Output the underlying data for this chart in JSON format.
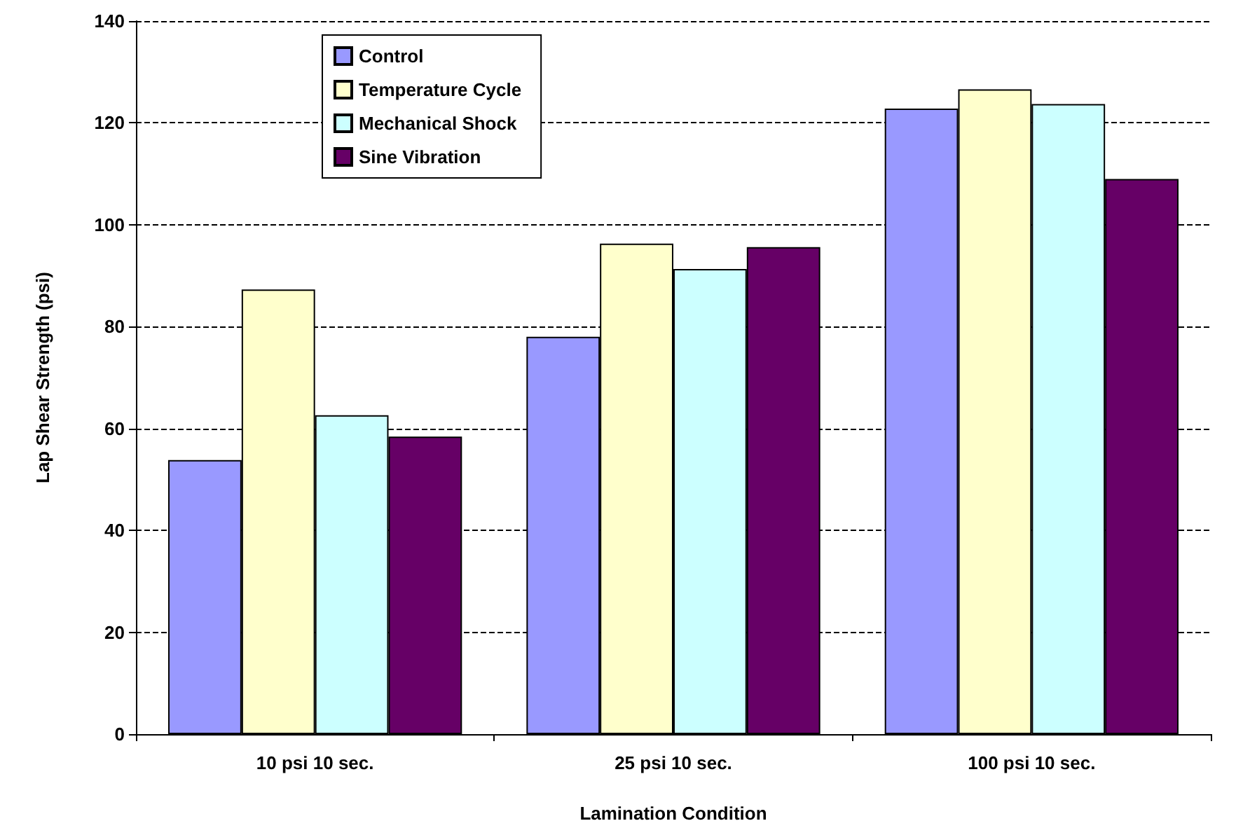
{
  "chart_data": {
    "type": "bar",
    "xlabel": "Lamination Condition",
    "ylabel": "Lap Shear Strength (psi)",
    "categories": [
      "10 psi 10 sec.",
      "25 psi 10 sec.",
      "100 psi 10 sec."
    ],
    "series": [
      {
        "name": "Control",
        "color": "#9999ff",
        "values": [
          53.8,
          78,
          122.8
        ]
      },
      {
        "name": "Temperature Cycle",
        "color": "#ffffcc",
        "values": [
          87.3,
          96.3,
          126.6
        ]
      },
      {
        "name": "Mechanical Shock",
        "color": "#ccffff",
        "values": [
          62.6,
          91.3,
          123.7
        ]
      },
      {
        "name": "Sine Vibration",
        "color": "#660066",
        "values": [
          58.4,
          95.6,
          109
        ]
      }
    ],
    "ylim": [
      0,
      140
    ],
    "yticks": [
      0,
      20,
      40,
      60,
      80,
      100,
      120,
      140
    ],
    "grid": "y",
    "legend": "top left"
  }
}
